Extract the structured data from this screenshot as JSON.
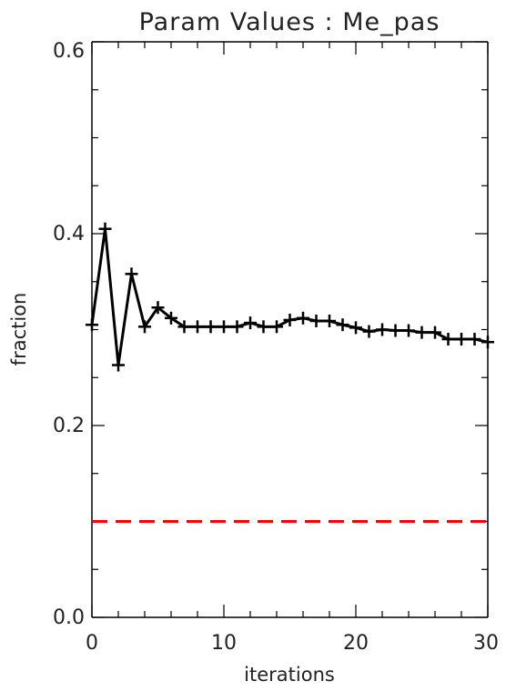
{
  "chart_data": {
    "type": "line",
    "title": "Param Values : Me_pas",
    "xlabel": "iterations",
    "ylabel": "fraction",
    "xlim": [
      0,
      30
    ],
    "ylim": [
      0.0,
      0.6
    ],
    "x_ticks": [
      "0",
      "10",
      "20",
      "30"
    ],
    "y_ticks": [
      "0.0",
      "0.2",
      "0.4",
      "0.6"
    ],
    "grid": false,
    "series": [
      {
        "color": "#000000",
        "marker": "plus",
        "x": [
          0,
          1,
          2,
          3,
          4,
          5,
          6,
          7,
          8,
          9,
          10,
          11,
          12,
          13,
          14,
          15,
          16,
          17,
          18,
          19,
          20,
          21,
          22,
          23,
          24,
          25,
          26,
          27,
          28,
          29,
          30
        ],
        "y": [
          0.305,
          0.405,
          0.263,
          0.358,
          0.303,
          0.323,
          0.312,
          0.303,
          0.303,
          0.303,
          0.303,
          0.303,
          0.307,
          0.303,
          0.303,
          0.31,
          0.312,
          0.309,
          0.309,
          0.305,
          0.302,
          0.298,
          0.3,
          0.299,
          0.299,
          0.297,
          0.297,
          0.29,
          0.29,
          0.29,
          0.287
        ]
      }
    ],
    "reference_line": {
      "y": 0.1,
      "color": "#ff0000",
      "style": "dashed"
    }
  }
}
